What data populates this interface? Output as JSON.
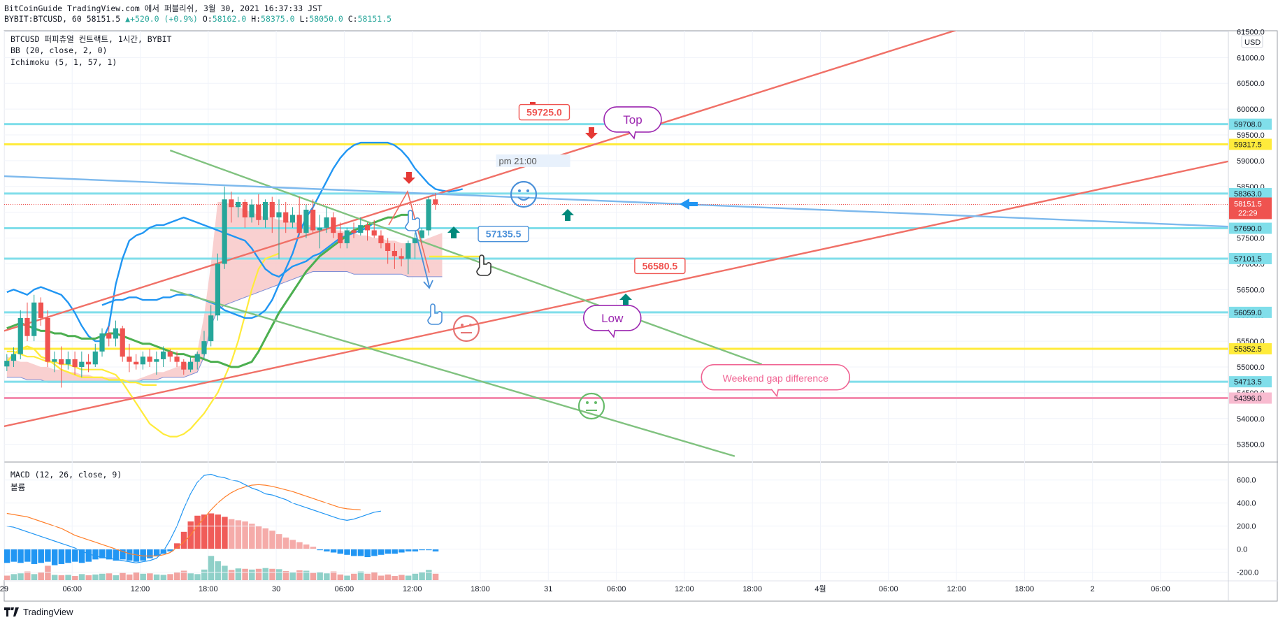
{
  "header": {
    "publish_line": "BitCoinGuide TradingView.com 에서 퍼블리쉬, 3월 30, 2021 16:37:33 JST",
    "symbol_info": "BYBIT:BTCUSD, 60 58151.5",
    "change": "+520.0 (+0.9%)",
    "ohlc": [
      {
        "k": "O:",
        "v": "58162.0"
      },
      {
        "k": "H:",
        "v": "58375.0"
      },
      {
        "k": "L:",
        "v": "58050.0"
      },
      {
        "k": "C:",
        "v": "58151.5"
      }
    ]
  },
  "legend": {
    "title": "BTCUSD 퍼피츄얼 컨트랙트, 1시간, BYBIT",
    "bb": "BB (20, close, 2, 0)",
    "ichimoku": "Ichimoku (5, 1, 57, 1)",
    "macd": "MACD (12, 26, close, 9)",
    "volume": "볼륨"
  },
  "footer": {
    "brand": "TradingView"
  },
  "colors": {
    "up": "#26a69a",
    "down": "#ef5350",
    "bb": "#2196f3",
    "ichimoku_fast": "#4caf50",
    "ichimoku_lag": "#ffeb3b",
    "cloud": "#f8c8c8",
    "trend_red": "#f07067",
    "trend_green": "#80c27f",
    "trend_blue": "#7db9ed",
    "hline_cyan": "#80deea",
    "hline_yellow": "#ffeb3b",
    "hline_pink": "#f48fb1"
  },
  "chart_data": {
    "type": "candlestick",
    "currency": "USD",
    "price_axis": {
      "ylim": [
        53170,
        61520
      ],
      "ticks": [
        "53500.0",
        "54000.0",
        "54500.0",
        "55000.0",
        "55500.0",
        "56000.0",
        "56500.0",
        "57000.0",
        "57500.0",
        "58000.0",
        "58500.0",
        "59000.0",
        "59500.0",
        "60000.0",
        "60500.0",
        "61000.0",
        "61500.0"
      ]
    },
    "time_axis": {
      "labels": [
        {
          "t": "29",
          "i": -0.4
        },
        {
          "t": "06:00",
          "i": 9.6
        },
        {
          "t": "12:00",
          "i": 19.6
        },
        {
          "t": "18:00",
          "i": 29.6
        },
        {
          "t": "30",
          "i": 39.6
        },
        {
          "t": "06:00",
          "i": 49.6
        },
        {
          "t": "12:00",
          "i": 59.6
        },
        {
          "t": "18:00",
          "i": 69.6
        },
        {
          "t": "31",
          "i": 79.6
        },
        {
          "t": "06:00",
          "i": 89.6
        },
        {
          "t": "12:00",
          "i": 99.6
        },
        {
          "t": "18:00",
          "i": 109.6
        },
        {
          "t": "4월",
          "i": 119.6
        },
        {
          "t": "06:00",
          "i": 129.6
        },
        {
          "t": "12:00",
          "i": 139.6
        },
        {
          "t": "18:00",
          "i": 149.6
        },
        {
          "t": "2",
          "i": 159.6
        },
        {
          "t": "06:00",
          "i": 169.6
        }
      ]
    },
    "candles": [
      [
        55010,
        55250,
        54920,
        55120
      ],
      [
        55120,
        55380,
        55000,
        55250
      ],
      [
        55250,
        56100,
        55150,
        55950
      ],
      [
        55950,
        56250,
        55500,
        55600
      ],
      [
        55600,
        56400,
        55500,
        56250
      ],
      [
        56250,
        56350,
        55800,
        55950
      ],
      [
        55950,
        56100,
        55000,
        55100
      ],
      [
        55100,
        55300,
        54900,
        55150
      ],
      [
        55150,
        55400,
        54600,
        55050
      ],
      [
        55050,
        55300,
        54950,
        55150
      ],
      [
        55150,
        55300,
        54850,
        55000
      ],
      [
        55000,
        55300,
        54800,
        55100
      ],
      [
        55100,
        55250,
        54900,
        55050
      ],
      [
        55050,
        55450,
        55000,
        55300
      ],
      [
        55300,
        55750,
        55200,
        55650
      ],
      [
        55650,
        55800,
        55400,
        55550
      ],
      [
        55550,
        55900,
        55400,
        55750
      ],
      [
        55750,
        55800,
        55100,
        55200
      ],
      [
        55200,
        55450,
        54900,
        55100
      ],
      [
        55100,
        55250,
        54950,
        55050
      ],
      [
        55050,
        55300,
        54950,
        55200
      ],
      [
        55200,
        55350,
        55000,
        55100
      ],
      [
        55100,
        55300,
        54850,
        55150
      ],
      [
        55150,
        55400,
        55000,
        55300
      ],
      [
        55300,
        55350,
        55100,
        55200
      ],
      [
        55200,
        55300,
        55000,
        55100
      ],
      [
        55100,
        55150,
        54850,
        54950
      ],
      [
        54950,
        55200,
        54900,
        55100
      ],
      [
        55100,
        55300,
        54950,
        55250
      ],
      [
        55250,
        55700,
        55150,
        55500
      ],
      [
        55500,
        56200,
        55400,
        56000
      ],
      [
        56000,
        57200,
        55900,
        57000
      ],
      [
        57000,
        58500,
        56900,
        58250
      ],
      [
        58250,
        58400,
        57800,
        58100
      ],
      [
        58100,
        58300,
        57900,
        58200
      ],
      [
        58200,
        58250,
        57700,
        57900
      ],
      [
        57900,
        58250,
        57800,
        58150
      ],
      [
        58150,
        58350,
        57750,
        57850
      ],
      [
        57850,
        58250,
        57700,
        58200
      ],
      [
        58200,
        58300,
        57600,
        57900
      ],
      [
        57900,
        58250,
        57100,
        58000
      ],
      [
        58000,
        58200,
        57600,
        57800
      ],
      [
        57800,
        58100,
        57700,
        57950
      ],
      [
        57950,
        58300,
        57550,
        57600
      ],
      [
        57600,
        58150,
        57500,
        58050
      ],
      [
        58050,
        58250,
        57600,
        57650
      ],
      [
        57650,
        57950,
        57300,
        57700
      ],
      [
        57700,
        58100,
        57600,
        57900
      ],
      [
        57900,
        58000,
        57500,
        57600
      ],
      [
        57600,
        57800,
        57300,
        57400
      ],
      [
        57400,
        57700,
        57300,
        57650
      ],
      [
        57650,
        57800,
        57500,
        57600
      ],
      [
        57600,
        57900,
        57550,
        57750
      ],
      [
        57750,
        57800,
        57450,
        57650
      ],
      [
        57650,
        57850,
        57500,
        57550
      ],
      [
        57550,
        57650,
        57300,
        57400
      ],
      [
        57400,
        57500,
        57000,
        57250
      ],
      [
        57250,
        57400,
        56900,
        57150
      ],
      [
        57150,
        57300,
        56950,
        57100
      ],
      [
        57100,
        57450,
        56800,
        57400
      ],
      [
        57400,
        57600,
        57100,
        57500
      ],
      [
        57500,
        57700,
        57350,
        57650
      ],
      [
        57650,
        58300,
        57550,
        58250
      ],
      [
        58250,
        58375,
        58050,
        58151.5
      ]
    ],
    "bb_upper": [
      56200,
      56250,
      56300,
      56300,
      56350,
      56350,
      56300,
      56300,
      56300,
      56350,
      56350,
      56400,
      56400,
      56400,
      56350,
      56300,
      56250,
      56200,
      56100,
      56050,
      56000,
      55950,
      55950,
      56000,
      56100,
      56300,
      56600,
      56900,
      57200,
      57600,
      57900,
      58100,
      58350,
      58600,
      58850,
      59050,
      59200,
      59300,
      59350,
      59350,
      59350,
      59350,
      59350,
      59300,
      59200,
      59050,
      58850,
      58700,
      58550,
      58450,
      58420,
      58400,
      58420,
      58450
    ],
    "bb_x0": 0,
    "bb_lower": [
      56500,
      56300,
      56150,
      56050,
      55950,
      55900,
      55850,
      55800,
      55750,
      55700,
      55600,
      55500,
      55400,
      55350,
      55300,
      55250,
      55200,
      55150,
      55100,
      55050,
      55000,
      54950,
      54900,
      54850,
      54800,
      54750,
      54700,
      54600,
      54500,
      54350,
      54200,
      54050,
      53950,
      53850,
      53800,
      53750,
      53700,
      53650,
      53700
    ],
    "bb_lower_x0": 14,
    "ichimoku_fast": [
      55600,
      55650,
      55650,
      55600,
      55550,
      55500,
      55450,
      55450,
      55400,
      55350,
      55300,
      55250,
      55250,
      55200,
      55200,
      55150,
      55100,
      55100,
      55050,
      55000,
      55000,
      55050,
      55100,
      55300,
      55550,
      55800,
      56050,
      56250,
      56450,
      56650,
      56850,
      57000,
      57150,
      57250,
      57350,
      57450,
      57550,
      57650,
      57700,
      57750,
      57800,
      57850,
      57900,
      57900,
      57950,
      57950
    ],
    "ichimoku_x0": 14,
    "ichimoku_lag": [
      55300,
      55300,
      55250,
      55200,
      55200,
      55150,
      55100,
      55100,
      55050,
      55050,
      55000,
      54950,
      54950,
      54950,
      54950,
      54900,
      54850,
      54700,
      54500,
      54300,
      54100,
      53900,
      53800,
      53700,
      53650,
      53650,
      53700,
      53800,
      53950,
      54100,
      54300,
      54500,
      54800,
      55100,
      55500,
      56000,
      56500,
      56900,
      57100,
      57150,
      57200
    ],
    "ichimoku_lag_x0": 0,
    "cloud_top": [
      55200,
      55150,
      55100,
      55100,
      55050,
      55000,
      55000,
      54950,
      54950,
      54900,
      54900,
      54850,
      54850,
      54800,
      54800,
      54800,
      54800,
      54750,
      54750,
      54750,
      54800,
      54850,
      54900,
      54900,
      54950,
      55000,
      55050,
      55100,
      55300,
      56000,
      57000,
      58200,
      58200,
      58150,
      58100,
      58050,
      58000,
      57950,
      57900,
      57900,
      57850,
      57850,
      57800,
      57800,
      57750,
      57750,
      57700,
      57700,
      57650,
      57650,
      57600,
      57600,
      57550,
      57550,
      57500,
      57500,
      57450,
      57450,
      57400,
      57400,
      57400,
      57450,
      57500,
      57550,
      57600
    ],
    "cloud_bottom": [
      54800,
      54800,
      54800,
      54750,
      54750,
      54750,
      54700,
      54700,
      54700,
      54700,
      54700,
      54700,
      54700,
      54700,
      54700,
      54700,
      54700,
      54700,
      54700,
      54700,
      54750,
      54750,
      54750,
      54800,
      54800,
      54800,
      54800,
      54850,
      54900,
      55200,
      55800,
      56100,
      56200,
      56250,
      56300,
      56350,
      56400,
      56450,
      56500,
      56550,
      56600,
      56650,
      56700,
      56750,
      56800,
      56850,
      56850,
      56850,
      56850,
      56850,
      56850,
      56800,
      56800,
      56800,
      56800,
      56800,
      56800,
      56800,
      56800,
      56750,
      56750,
      56750,
      56750,
      56750,
      56750
    ],
    "trendlines": [
      {
        "kind": "red",
        "p1": [
          -0.4,
          55700
        ],
        "p2": [
          140,
          61550
        ]
      },
      {
        "kind": "red",
        "p1": [
          -0.4,
          53850
        ],
        "p2": [
          180,
          59000
        ]
      },
      {
        "kind": "green",
        "p1": [
          24,
          59200
        ],
        "p2": [
          111,
          55050
        ]
      },
      {
        "kind": "green",
        "p1": [
          24,
          56500
        ],
        "p2": [
          107,
          53270
        ]
      },
      {
        "kind": "blue",
        "p1": [
          -0.4,
          58700
        ],
        "p2": [
          180,
          57720
        ]
      }
    ],
    "hlines": [
      {
        "v": 59708.0,
        "label": "59708.0",
        "kind": "cyan"
      },
      {
        "v": 59317.5,
        "label": "59317.5",
        "kind": "yellow"
      },
      {
        "v": 58363.0,
        "label": "58363.0",
        "kind": "cyan"
      },
      {
        "v": 57690.0,
        "label": "57690.0",
        "kind": "cyan"
      },
      {
        "v": 57101.5,
        "label": "57101.5",
        "kind": "cyan"
      },
      {
        "v": 56059.0,
        "label": "56059.0",
        "kind": "cyan"
      },
      {
        "v": 55352.5,
        "label": "55352.5",
        "kind": "yellow"
      },
      {
        "v": 54713.5,
        "label": "54713.5",
        "kind": "cyan"
      },
      {
        "v": 54397.0,
        "label": "54397.0",
        "kind": "pink"
      },
      {
        "v": 54396.0,
        "label": "54396.0",
        "kind": "pink"
      }
    ],
    "last_price": {
      "label": "58151.5",
      "countdown": "22:29",
      "v": 58151.5
    },
    "annotations": [
      {
        "text": "59725.0",
        "i": 79,
        "v": 59940,
        "kind": "red"
      },
      {
        "text": "56580.5",
        "i": 96,
        "v": 56960,
        "kind": "red"
      },
      {
        "text": "57135.5",
        "i": 73,
        "v": 57580,
        "kind": "blue"
      },
      {
        "text": "pm 21:00",
        "i": 75,
        "v": 59000,
        "kind": "plain"
      },
      {
        "text": "Top",
        "i": 92,
        "v": 59800,
        "kind": "bubble-purple"
      },
      {
        "text": "Low",
        "i": 89,
        "v": 55950,
        "kind": "bubble-purple"
      },
      {
        "text": "Weekend gap difference",
        "i": 113,
        "v": 54800,
        "kind": "bubble-pink"
      }
    ],
    "macd_axis": {
      "ylim": [
        -270,
        750
      ],
      "ticks": [
        "600.0",
        "400.0",
        "200.0",
        "0.0",
        "-200.0"
      ]
    },
    "volume": [
      120,
      160,
      180,
      230,
      160,
      200,
      380,
      140,
      130,
      140,
      110,
      160,
      130,
      150,
      170,
      180,
      130,
      190,
      150,
      200,
      170,
      180,
      150,
      140,
      160,
      200,
      250,
      180,
      160,
      280,
      640,
      500,
      380,
      270,
      310,
      300,
      280,
      300,
      320,
      300,
      290,
      240,
      200,
      260,
      250,
      190,
      210,
      180,
      230,
      150,
      120,
      170,
      230,
      170,
      210,
      120,
      150,
      110,
      140,
      120,
      170,
      220,
      270,
      170
    ],
    "volume_up": [
      0,
      1,
      1,
      0,
      1,
      0,
      0,
      1,
      0,
      1,
      0,
      1,
      0,
      1,
      1,
      0,
      1,
      0,
      0,
      0,
      1,
      0,
      1,
      1,
      0,
      0,
      0,
      1,
      1,
      1,
      1,
      1,
      1,
      0,
      1,
      0,
      1,
      0,
      1,
      0,
      1,
      0,
      1,
      0,
      1,
      0,
      1,
      1,
      0,
      0,
      1,
      0,
      1,
      0,
      0,
      0,
      0,
      0,
      0,
      1,
      1,
      1,
      1,
      0
    ],
    "macd_hist": [
      -120,
      -110,
      -120,
      -110,
      -130,
      -120,
      -110,
      -140,
      -130,
      -120,
      -110,
      -120,
      -110,
      -90,
      -80,
      -90,
      -100,
      -90,
      -100,
      -110,
      -100,
      -80,
      -60,
      -40,
      -20,
      50,
      150,
      240,
      290,
      300,
      310,
      300,
      280,
      260,
      250,
      240,
      220,
      200,
      180,
      160,
      130,
      100,
      80,
      60,
      40,
      20,
      -10,
      -20,
      -30,
      -40,
      -50,
      -60,
      -60,
      -70,
      -60,
      -50,
      -40,
      -40,
      -30,
      -20,
      -20,
      -10,
      -10,
      -20
    ],
    "macd_line": [
      200,
      190,
      170,
      150,
      130,
      110,
      90,
      70,
      50,
      30,
      10,
      -20,
      -40,
      -60,
      -70,
      -80,
      -90,
      -100,
      -110,
      -120,
      -110,
      -100,
      -80,
      -20,
      80,
      200,
      350,
      480,
      580,
      640,
      650,
      630,
      620,
      600,
      590,
      560,
      530,
      510,
      480,
      470,
      450,
      430,
      400,
      380,
      360,
      340,
      320,
      300,
      280,
      260,
      250,
      260,
      280,
      300,
      320,
      330
    ],
    "signal_line": [
      310,
      300,
      290,
      280,
      260,
      240,
      220,
      200,
      180,
      150,
      120,
      100,
      80,
      60,
      40,
      20,
      0,
      -20,
      -40,
      -50,
      -60,
      -60,
      -60,
      -50,
      -30,
      10,
      60,
      120,
      200,
      270,
      340,
      400,
      450,
      490,
      520,
      540,
      555,
      560,
      555,
      545,
      530,
      515,
      500,
      480,
      460,
      440,
      420,
      400,
      380,
      360,
      350,
      345,
      340
    ],
    "crosshair_price": 58151.5
  }
}
